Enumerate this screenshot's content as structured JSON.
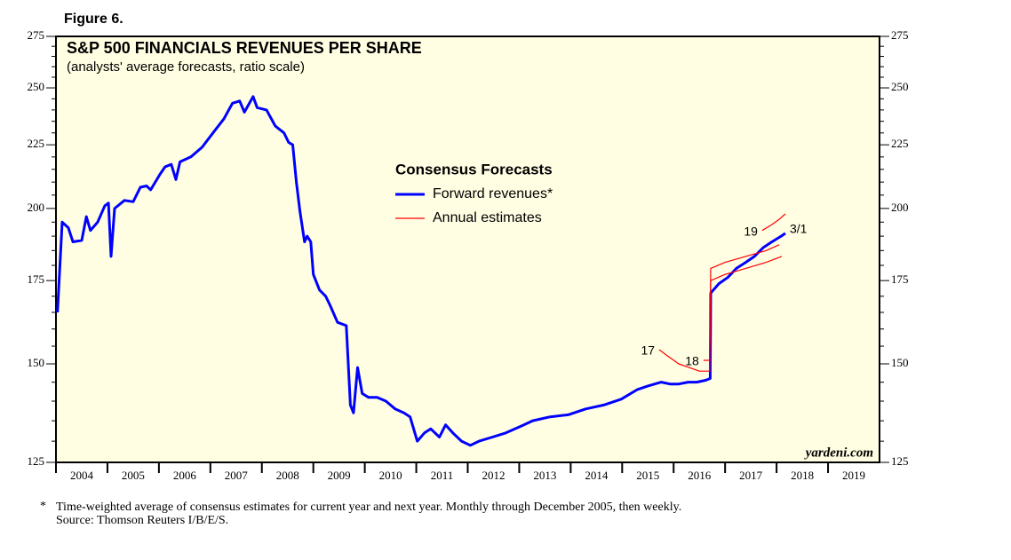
{
  "figure_label": "Figure 6.",
  "chart_data": {
    "type": "line",
    "title": "S&P 500 FINANCIALS REVENUES PER SHARE",
    "subtitle": "(analysts' average forecasts, ratio scale)",
    "legend_title": "Consensus Forecasts",
    "log_scale": true,
    "xlim": [
      2004,
      2020
    ],
    "xticks": [
      2004,
      2005,
      2006,
      2007,
      2008,
      2009,
      2010,
      2011,
      2012,
      2013,
      2014,
      2015,
      2016,
      2017,
      2018,
      2019
    ],
    "ylim": [
      125,
      275
    ],
    "yticks": [
      125,
      150,
      175,
      200,
      225,
      250,
      275
    ],
    "yminor_ticks": [
      130,
      135,
      140,
      145,
      155,
      160,
      165,
      170,
      180,
      185,
      190,
      195,
      205,
      210,
      215,
      220,
      230,
      235,
      240,
      245,
      255,
      260,
      265,
      270
    ],
    "series": [
      {
        "name": "Forward revenues*",
        "color": "#0000ff",
        "end_label": "3/1",
        "x": [
          2004.03,
          2004.12,
          2004.24,
          2004.33,
          2004.5,
          2004.59,
          2004.67,
          2004.81,
          2004.95,
          2005.02,
          2005.07,
          2005.14,
          2005.33,
          2005.5,
          2005.64,
          2005.76,
          2005.84,
          2006.02,
          2006.12,
          2006.24,
          2006.33,
          2006.41,
          2006.62,
          2006.84,
          2007.05,
          2007.26,
          2007.43,
          2007.57,
          2007.66,
          2007.83,
          2007.91,
          2008.09,
          2008.26,
          2008.43,
          2008.52,
          2008.6,
          2008.67,
          2008.74,
          2008.83,
          2008.88,
          2008.95,
          2009.0,
          2009.12,
          2009.24,
          2009.33,
          2009.47,
          2009.64,
          2009.72,
          2009.78,
          2009.86,
          2009.95,
          2010.07,
          2010.24,
          2010.41,
          2010.59,
          2010.76,
          2010.88,
          2011.02,
          2011.16,
          2011.28,
          2011.45,
          2011.57,
          2011.71,
          2011.88,
          2012.05,
          2012.22,
          2012.48,
          2012.74,
          2013.09,
          2013.26,
          2013.6,
          2013.95,
          2014.29,
          2014.64,
          2014.98,
          2015.29,
          2015.5,
          2015.76,
          2015.93,
          2016.1,
          2016.28,
          2016.45,
          2016.62,
          2016.71,
          2016.72,
          2016.88,
          2017.05,
          2017.22,
          2017.4,
          2017.57,
          2017.74,
          2017.91,
          2018.09,
          2018.17
        ],
        "values": [
          165,
          195,
          193,
          188,
          188.5,
          197,
          192,
          195,
          201,
          202,
          183,
          200,
          203,
          202.5,
          208,
          208.5,
          207,
          213,
          216,
          217,
          211,
          218,
          220,
          224,
          230,
          236,
          243,
          244,
          239,
          246,
          241,
          240,
          233,
          230,
          226,
          225,
          210,
          199,
          188,
          190,
          188,
          177,
          172,
          170,
          167,
          162,
          161,
          139,
          137,
          149,
          142,
          141,
          141,
          140,
          138,
          137,
          136,
          130,
          132,
          133,
          131,
          134,
          132,
          130,
          129,
          130,
          131,
          132,
          134,
          135,
          136,
          136.5,
          138,
          139,
          140.5,
          143,
          144,
          145,
          144.5,
          144.5,
          145,
          145,
          145.5,
          146,
          171,
          174,
          176,
          179,
          181,
          183,
          186,
          188,
          190,
          191
        ]
      },
      {
        "name": "Annual estimates",
        "color": "#ff0000",
        "label": "17",
        "x": [
          2015.72,
          2015.9,
          2016.1,
          2016.3,
          2016.5,
          2016.7,
          2016.72,
          2017.0,
          2017.4,
          2017.8,
          2018.1
        ],
        "values": [
          154,
          152,
          150,
          149,
          148,
          148,
          175,
          177,
          179,
          181,
          183
        ]
      },
      {
        "color": "#ff0000",
        "label": "18",
        "x": [
          2016.58,
          2016.7,
          2016.72,
          2017.0,
          2017.4,
          2017.8,
          2018.05
        ],
        "values": [
          151,
          151,
          179,
          181,
          183,
          185,
          187
        ]
      },
      {
        "color": "#ff0000",
        "label": "19",
        "x": [
          2017.72,
          2017.9,
          2018.05,
          2018.17
        ],
        "values": [
          192,
          194,
          196,
          198
        ]
      }
    ],
    "watermark": "yardeni.com"
  },
  "footnote": {
    "marker": "*",
    "lines": [
      "Time-weighted average of consensus estimates for current year and next year. Monthly through December 2005, then weekly.",
      "Source: Thomson Reuters I/B/E/S."
    ]
  }
}
